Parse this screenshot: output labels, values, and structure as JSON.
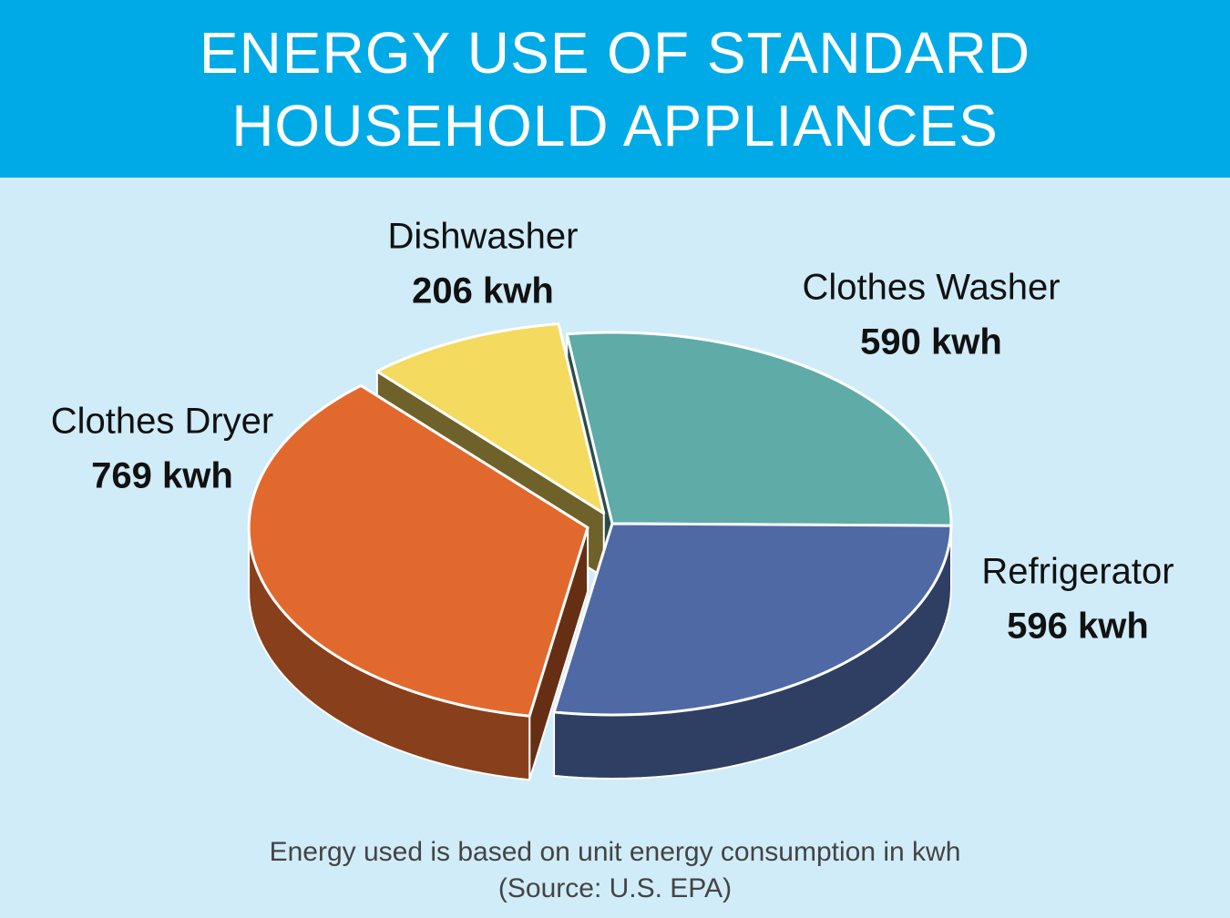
{
  "chart_data": {
    "type": "pie3d",
    "title": "ENERGY USE OF STANDARD HOUSEHOLD APPLIANCES",
    "categories": [
      "Dishwasher",
      "Clothes Washer",
      "Refrigerator",
      "Clothes Dryer"
    ],
    "values": [
      206,
      590,
      596,
      769
    ],
    "value_labels": [
      "206 kwh",
      "590 kwh",
      "596 kwh",
      "769 kwh"
    ],
    "colors": [
      "#f4da5e",
      "#5eaba8",
      "#4f69a5",
      "#e2692d"
    ],
    "note": "Energy used is based on unit energy consumption in kwh",
    "source": "(Source: U.S. EPA)"
  }
}
